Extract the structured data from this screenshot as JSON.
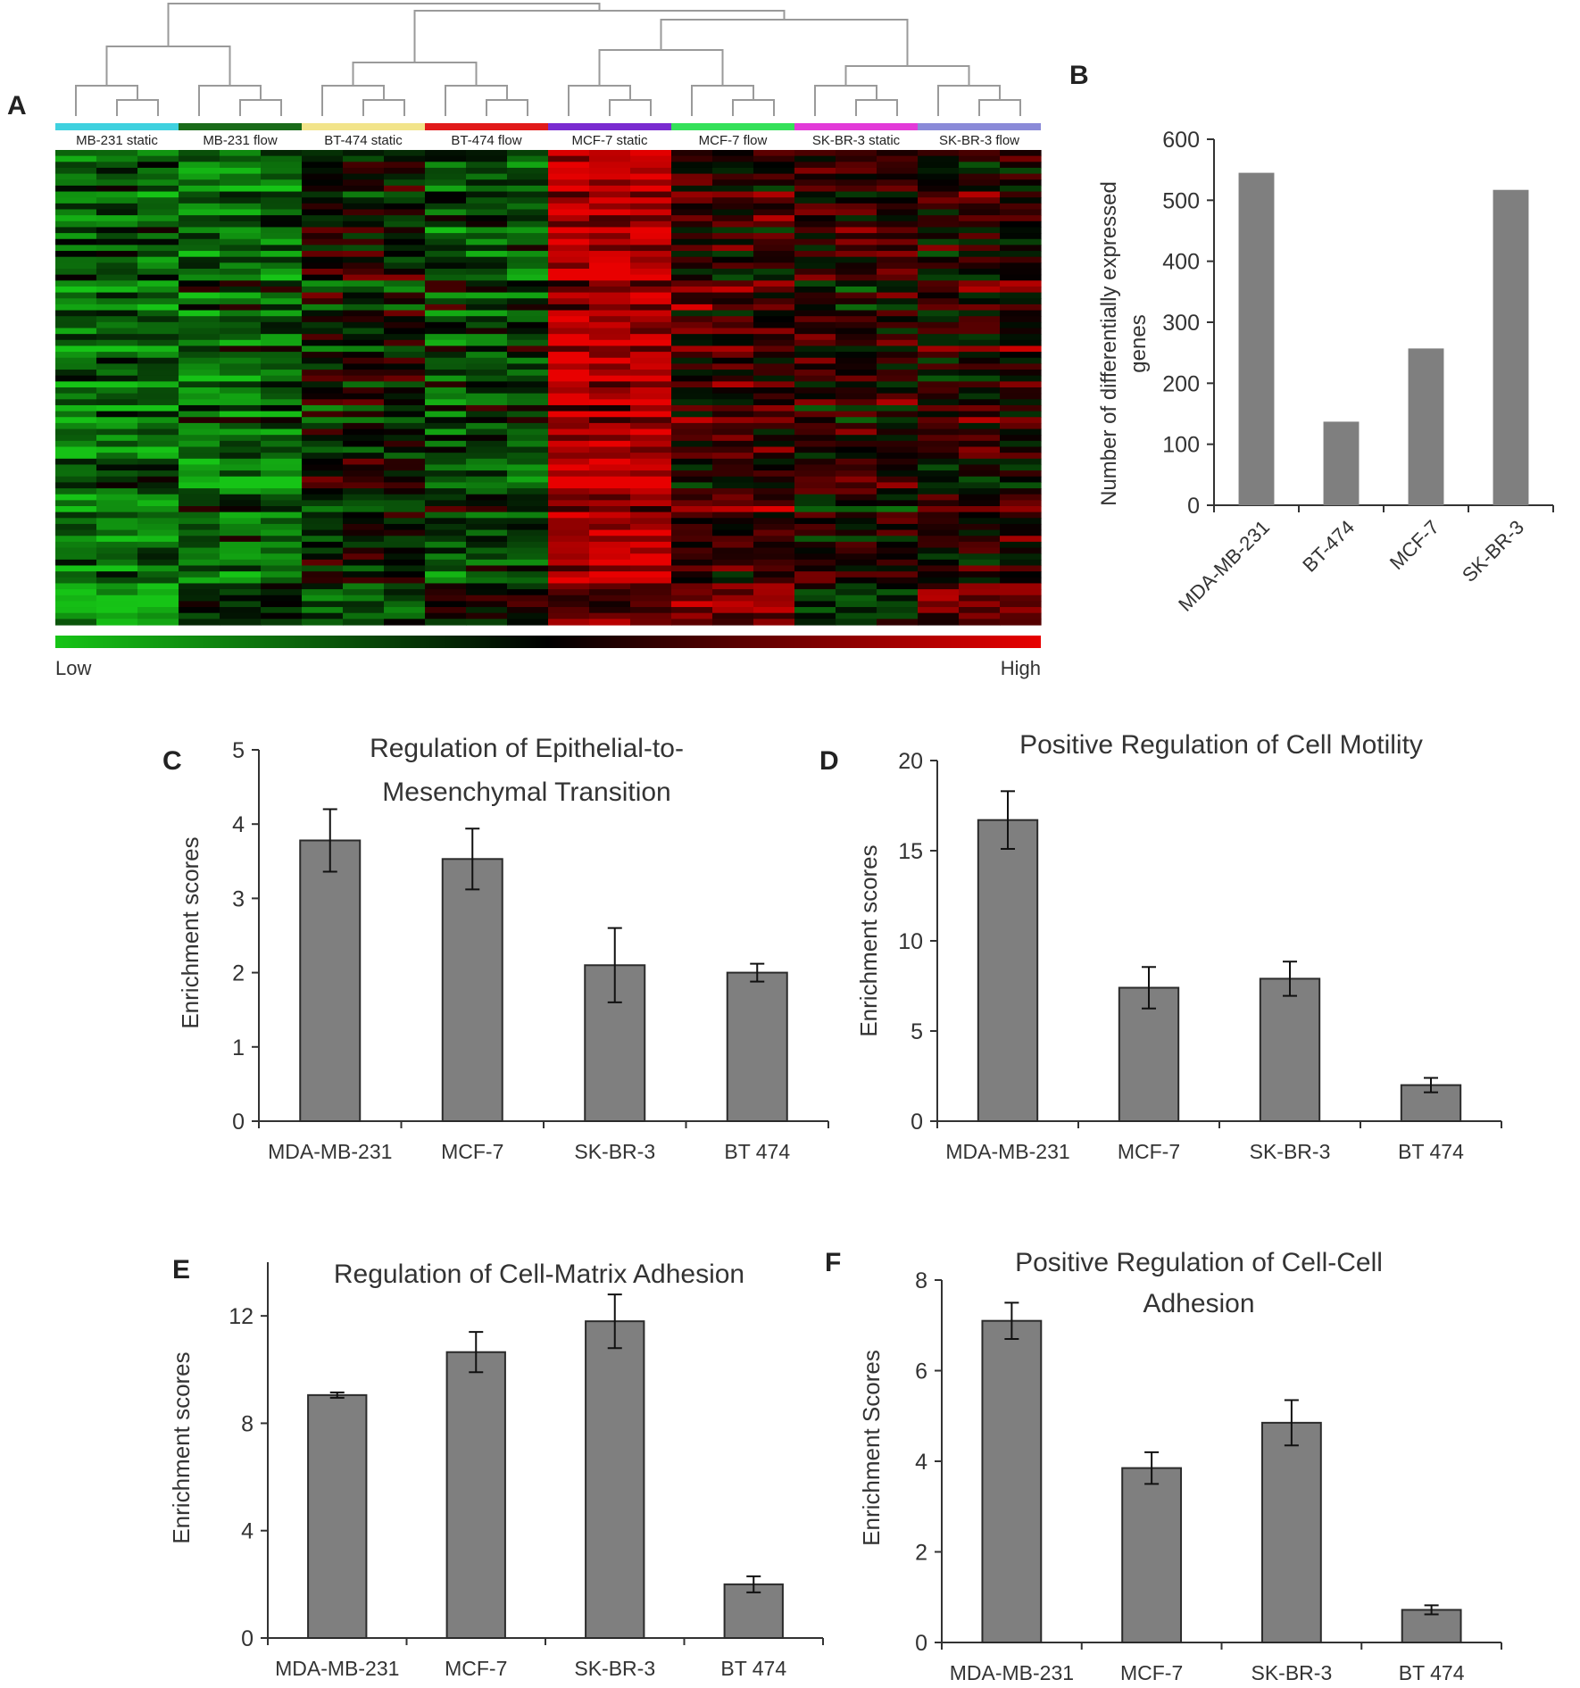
{
  "panels": {
    "A": "A",
    "B": "B",
    "C": "C",
    "D": "D",
    "E": "E",
    "F": "F"
  },
  "colors": {
    "bar": "#7f7f7f",
    "bar_stroke": "#2b2b2b",
    "axis": "#333333",
    "heat_low": "#16c416",
    "heat_mid": "#000000",
    "heat_high": "#e80000"
  },
  "chart_data": [
    {
      "panel": "A",
      "type": "heatmap",
      "title": "",
      "groups": [
        {
          "label": "MB-231 static",
          "color": "#3fd1df"
        },
        {
          "label": "MB-231 flow",
          "color": "#1a6b1a"
        },
        {
          "label": "BT-474 static",
          "color": "#f2e48a"
        },
        {
          "label": "BT-474 flow",
          "color": "#e11a1a"
        },
        {
          "label": "MCF-7 static",
          "color": "#7a2bd0"
        },
        {
          "label": "MCF-7 flow",
          "color": "#35e15a"
        },
        {
          "label": "SK-BR-3 static",
          "color": "#e23ad8"
        },
        {
          "label": "SK-BR-3 flow",
          "color": "#8a8ad8"
        }
      ],
      "columns_per_group": 3,
      "scale_low_label": "Low",
      "scale_high_label": "High",
      "dendrogram": true
    },
    {
      "panel": "B",
      "type": "bar",
      "title": "",
      "xlabel": "",
      "ylabel": "Number of differentially expressed genes",
      "categories": [
        "MDA-MB-231",
        "BT-474",
        "MCF-7",
        "SK-BR-3"
      ],
      "values": [
        545,
        137,
        257,
        517
      ],
      "ylim": [
        0,
        600
      ],
      "yticks": [
        0,
        100,
        200,
        300,
        400,
        500,
        600
      ],
      "grid": false
    },
    {
      "panel": "C",
      "type": "bar",
      "title": "Regulation of Epithelial-to-Mesenchymal Transition",
      "xlabel": "",
      "ylabel": "Enrichment scores",
      "categories": [
        "MDA-MB-231",
        "MCF-7",
        "SK-BR-3",
        "BT 474"
      ],
      "values": [
        3.78,
        3.53,
        2.1,
        2.0
      ],
      "errors": [
        0.42,
        0.41,
        0.5,
        0.12
      ],
      "ylim": [
        0,
        5
      ],
      "yticks": [
        0,
        1,
        2,
        3,
        4,
        5
      ],
      "grid": false
    },
    {
      "panel": "D",
      "type": "bar",
      "title": "Positive Regulation of Cell Motility",
      "xlabel": "",
      "ylabel": "Enrichment scores",
      "categories": [
        "MDA-MB-231",
        "MCF-7",
        "SK-BR-3",
        "BT 474"
      ],
      "values": [
        16.7,
        7.4,
        7.9,
        2.0
      ],
      "errors": [
        1.6,
        1.15,
        0.95,
        0.4
      ],
      "ylim": [
        0,
        20
      ],
      "yticks": [
        0,
        5,
        10,
        15,
        20
      ],
      "grid": false
    },
    {
      "panel": "E",
      "type": "bar",
      "title": "Regulation of Cell-Matrix Adhesion",
      "xlabel": "",
      "ylabel": "Enrichment scores",
      "categories": [
        "MDA-MB-231",
        "MCF-7",
        "SK-BR-3",
        "BT 474"
      ],
      "values": [
        9.05,
        10.65,
        11.8,
        2.0
      ],
      "errors": [
        0.1,
        0.75,
        1.0,
        0.3
      ],
      "ylim": [
        0,
        14
      ],
      "yticks": [
        0,
        4,
        8,
        12
      ],
      "grid": false
    },
    {
      "panel": "F",
      "type": "bar",
      "title": "Positive Regulation of Cell-Cell Adhesion",
      "xlabel": "",
      "ylabel": "Enrichment Scores",
      "categories": [
        "MDA-MB-231",
        "MCF-7",
        "SK-BR-3",
        "BT 474"
      ],
      "values": [
        7.1,
        3.85,
        4.85,
        0.72
      ],
      "errors": [
        0.4,
        0.35,
        0.5,
        0.1
      ],
      "ylim": [
        0,
        8
      ],
      "yticks": [
        0,
        2,
        4,
        6,
        8
      ],
      "grid": false
    }
  ]
}
